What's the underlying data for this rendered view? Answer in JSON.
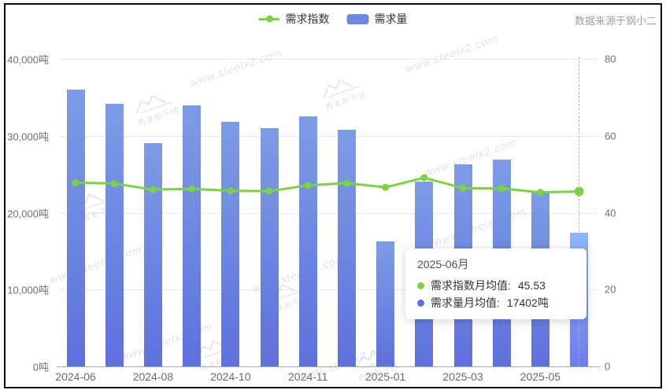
{
  "header": {
    "source_note": "数据来源于钢小二"
  },
  "legend": [
    {
      "label": "需求指数",
      "type": "line",
      "color": "#7cd342"
    },
    {
      "label": "需求量",
      "type": "bar",
      "color": "#6d87e3"
    }
  ],
  "tooltip": {
    "title": "2025-06月",
    "rows": [
      {
        "label": "需求指数月均值:",
        "value": "45.53",
        "dot_color": "#7cd342"
      },
      {
        "label": "需求量月均值:",
        "value": "17402吨",
        "dot_color": "#5a6fe4"
      }
    ]
  },
  "watermark": {
    "text": "www.steelx2.com",
    "logo_text": "西本新干线"
  },
  "chart_data": {
    "type": "bar+line",
    "n_points": 14,
    "series": [
      {
        "name": "需求量",
        "type": "bar",
        "axis": "left",
        "unit": "吨",
        "values": [
          36000,
          34200,
          29100,
          34000,
          31800,
          31000,
          32500,
          30800,
          16300,
          24000,
          26300,
          26900,
          22600,
          17402
        ]
      },
      {
        "name": "需求指数",
        "type": "line",
        "axis": "right",
        "values": [
          47.8,
          47.6,
          46.0,
          46.2,
          45.7,
          45.6,
          47.1,
          47.7,
          46.6,
          49.1,
          46.4,
          46.3,
          45.3,
          45.53
        ]
      }
    ],
    "x_labels": [
      {
        "text": "2024-06",
        "index": 0
      },
      {
        "text": "2024-08",
        "index": 2
      },
      {
        "text": "2024-10",
        "index": 4
      },
      {
        "text": "2024-11",
        "index": 6
      },
      {
        "text": "2025-01",
        "index": 8
      },
      {
        "text": "2025-03",
        "index": 10
      },
      {
        "text": "2025-05",
        "index": 12
      }
    ],
    "left_axis": {
      "labels": [
        "40,000吨",
        "30,000吨",
        "20,000吨",
        "10,000吨",
        "0吨"
      ],
      "min": 0,
      "max": 40000
    },
    "right_axis": {
      "labels": [
        "80",
        "60",
        "40",
        "20",
        "0"
      ],
      "min": 0,
      "max": 80
    },
    "highlight_index": 13,
    "grid": true,
    "legend_position": "top-center",
    "bar_color_gradient": [
      "#7d9ce6",
      "#5d71dd"
    ],
    "bar_highlight_gradient": [
      "#8fb6f8",
      "#6f7cea"
    ],
    "line_color": "#7cd342"
  }
}
